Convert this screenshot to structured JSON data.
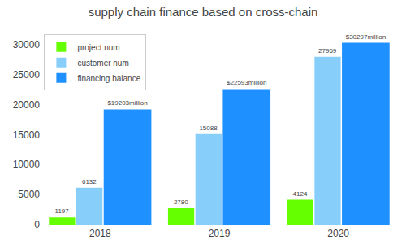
{
  "chart_data": {
    "type": "bar",
    "title": "supply chain finance based on cross-chain",
    "categories": [
      "2018",
      "2019",
      "2020"
    ],
    "series": [
      {
        "name": "project num",
        "color": "#66ff00",
        "values": [
          1197,
          2780,
          4124
        ]
      },
      {
        "name": "customer num",
        "color": "#87CEFA",
        "values": [
          6132,
          15088,
          27969
        ]
      },
      {
        "name": "financing balance",
        "color": "#1E90FF",
        "values": [
          19203,
          22593,
          30297
        ],
        "value_labels": [
          "$19203million",
          "$22593million",
          "$30297million"
        ]
      }
    ],
    "ylim": [
      0,
      32000
    ],
    "yticks": [
      0,
      5000,
      10000,
      15000,
      20000,
      25000,
      30000
    ],
    "grid": false,
    "legend": "upper left",
    "data_labels": true
  }
}
